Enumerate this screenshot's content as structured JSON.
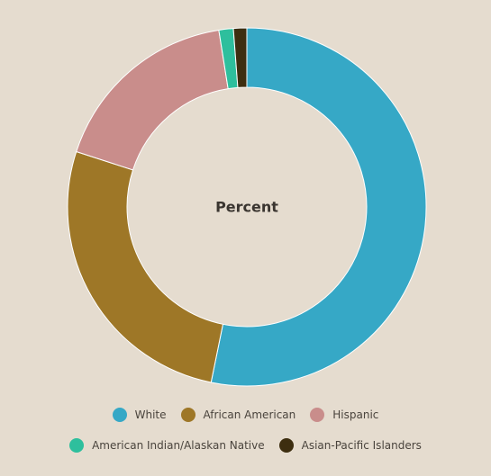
{
  "chart_data": {
    "type": "pie",
    "donut": true,
    "center_label": "Percent",
    "categories": [
      "White",
      "African American",
      "Hispanic",
      "American Indian/Alaskan Native",
      "Asian-Pacific Islanders"
    ],
    "values": [
      53.2,
      26.8,
      17.5,
      1.3,
      1.2
    ],
    "colors": [
      "#36a8c6",
      "#9e7727",
      "#c98d8b",
      "#2ebf9d",
      "#3d2e10"
    ],
    "legend_position": "bottom"
  }
}
